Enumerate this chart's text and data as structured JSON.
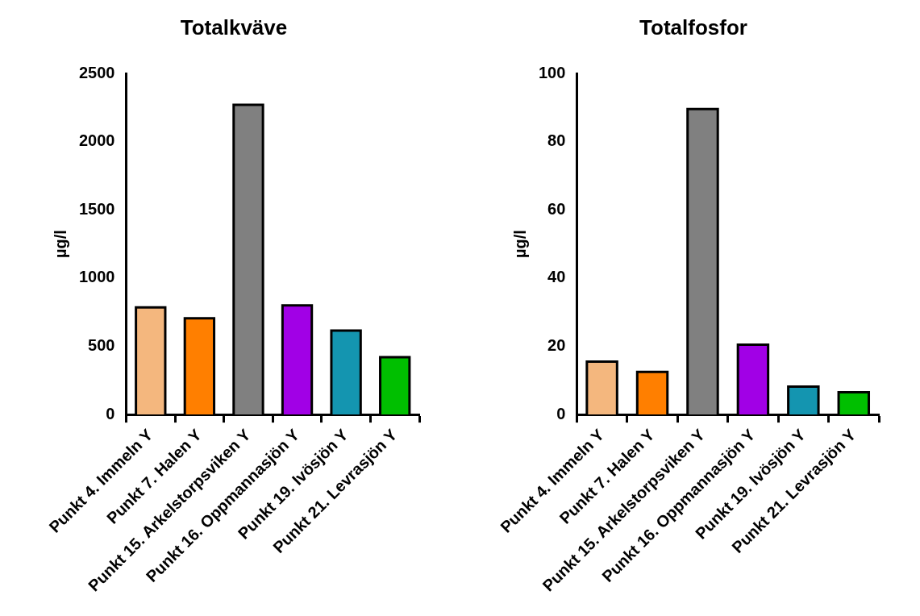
{
  "chart_data": [
    {
      "type": "bar",
      "title": "Totalkväve",
      "ylabel": "µg/l",
      "categories": [
        "Punkt 4. Immeln Y",
        "Punkt 7. Halen Y",
        "Punkt 15. Arkelstorpsviken Y",
        "Punkt 16. Oppmannasjön Y",
        "Punkt 19. Ivösjön Y",
        "Punkt 21. Levrasjön Y"
      ],
      "values": [
        785,
        705,
        2270,
        800,
        615,
        420
      ],
      "colors": [
        "#f4b77e",
        "#ff7f00",
        "#808080",
        "#a100e6",
        "#1495b0",
        "#00bf00"
      ],
      "ylim": [
        0,
        2500
      ],
      "yticks": [
        0,
        500,
        1000,
        1500,
        2000,
        2500
      ]
    },
    {
      "type": "bar",
      "title": "Totalfosfor",
      "ylabel": "µg/l",
      "categories": [
        "Punkt 4. Immeln Y",
        "Punkt 7. Halen Y",
        "Punkt 15. Arkelstorpsviken Y",
        "Punkt 16. Oppmannasjön Y",
        "Punkt 19. Ivösjön Y",
        "Punkt 21. Levrasjön Y"
      ],
      "values": [
        15.5,
        12.5,
        89.6,
        20.5,
        8.2,
        6.5
      ],
      "colors": [
        "#f4b77e",
        "#ff7f00",
        "#808080",
        "#a100e6",
        "#1495b0",
        "#00bf00"
      ],
      "ylim": [
        0,
        100
      ],
      "yticks": [
        0,
        20,
        40,
        60,
        80,
        100
      ]
    }
  ]
}
